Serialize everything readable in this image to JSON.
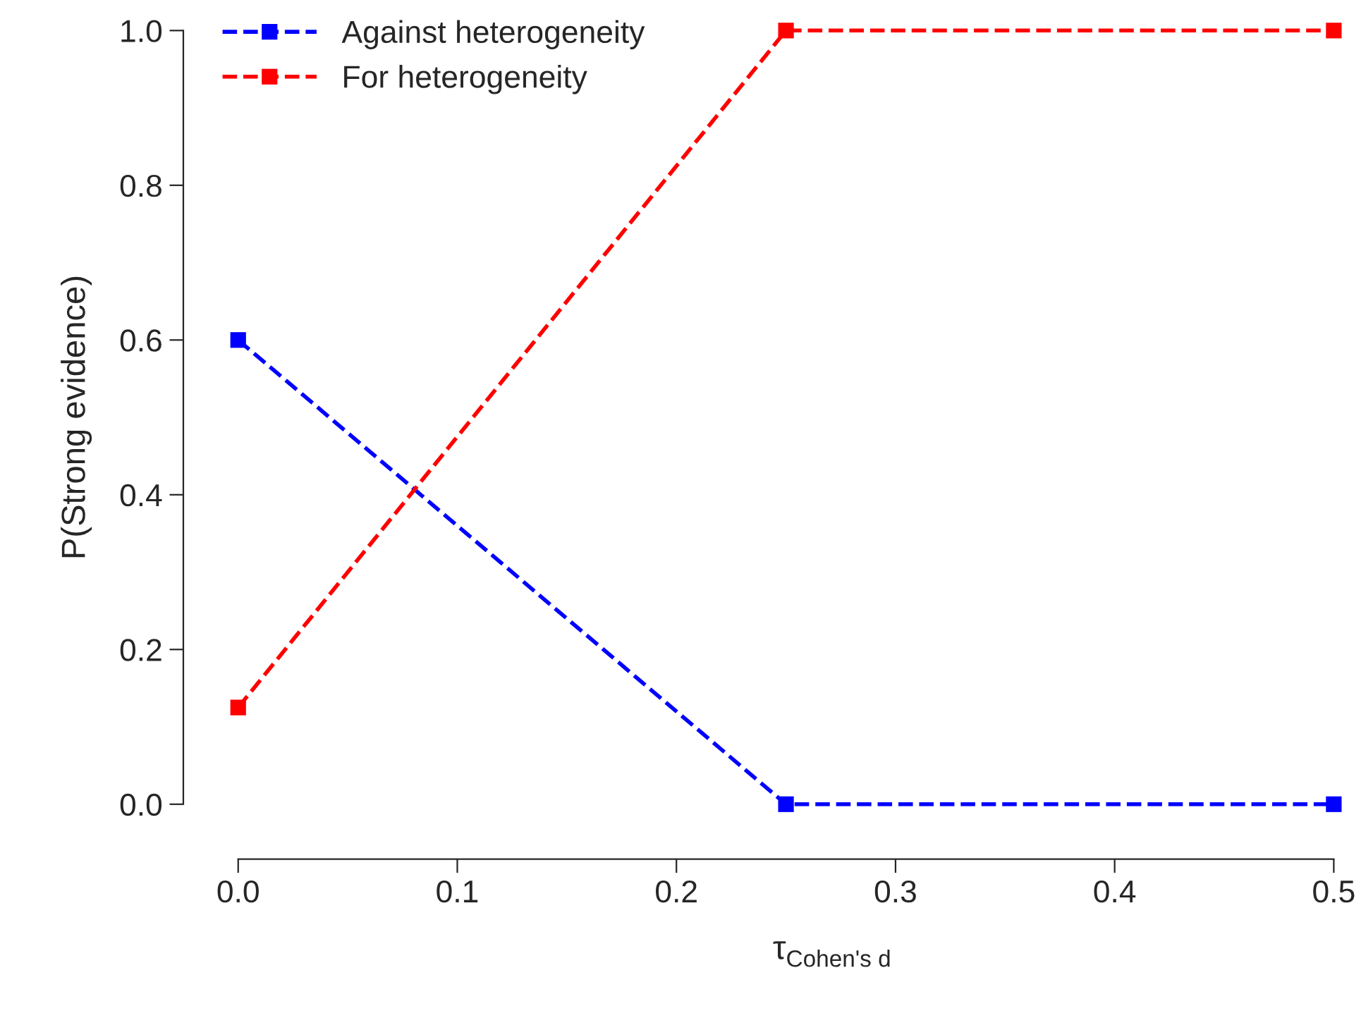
{
  "chart_data": {
    "type": "line",
    "xlabel": "τ$_{Cohen's d}$",
    "ylabel": "P(Strong evidence)",
    "x": [
      0,
      0.25,
      0.5
    ],
    "series": [
      {
        "name": "Against heterogeneity",
        "color": "#0000ff",
        "values": [
          0.6,
          0,
          0
        ]
      },
      {
        "name": "For heterogeneity",
        "color": "#ff0000",
        "values": [
          0.125,
          1,
          1
        ]
      }
    ],
    "xlim": [
      0,
      0.5
    ],
    "xticks": [
      {
        "value": 0,
        "label": "0.0"
      },
      0.1,
      0.2,
      0.3,
      0.4,
      0.5
    ],
    "ylim": [
      0,
      1
    ],
    "yticks": [
      {
        "value": 0,
        "label": "0.0"
      },
      0.2,
      0.4,
      0.6,
      0.8,
      {
        "value": 1,
        "label": "1.0"
      }
    ],
    "marker": "square",
    "line_style": "dashed",
    "legend": "top left",
    "grid": false
  }
}
